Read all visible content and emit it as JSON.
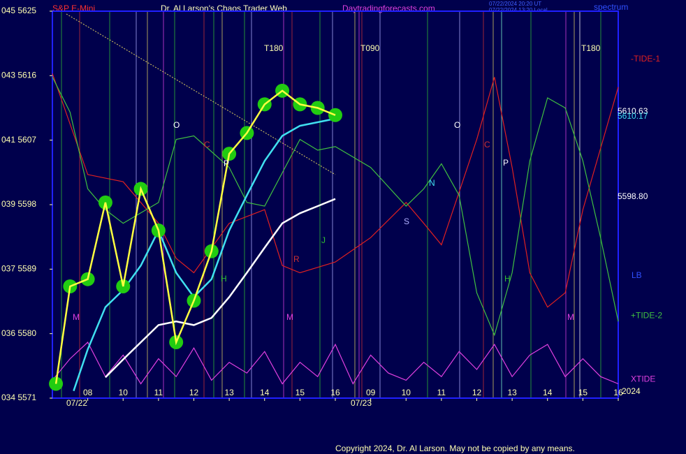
{
  "chart_data": {
    "type": "line",
    "title": "Dr. Al Larson's Chaos Trader Web",
    "subtitle": "S&P E-Mini",
    "site": "Daytradingforecasts.com",
    "tag": "spectrum",
    "timestamps": [
      "07/22/2024 20:20 UT",
      "07/22/2024 13:20 Local"
    ],
    "copyright": "Copyright 2024, Dr. Al Larson. May not be copied by any means.",
    "year": "2024",
    "dates": [
      "07/22",
      "07/23"
    ],
    "ylim": [
      5571,
      5625
    ],
    "yticks": [
      {
        "value": 5625,
        "label": "045  5625"
      },
      {
        "value": 5616,
        "label": "043  5616"
      },
      {
        "value": 5607,
        "label": "041  5607"
      },
      {
        "value": 5598,
        "label": "039  5598"
      },
      {
        "value": 5589,
        "label": "037  5589"
      },
      {
        "value": 5580,
        "label": "036  5580"
      },
      {
        "value": 5571,
        "label": "034  5571"
      }
    ],
    "xlim": [
      0,
      16
    ],
    "xticks": [
      {
        "value": 1,
        "label": "08"
      },
      {
        "value": 2,
        "label": "10"
      },
      {
        "value": 3,
        "label": "11"
      },
      {
        "value": 4,
        "label": "12"
      },
      {
        "value": 5,
        "label": "13"
      },
      {
        "value": 6,
        "label": "14"
      },
      {
        "value": 7,
        "label": "15"
      },
      {
        "value": 8,
        "label": "16"
      },
      {
        "value": 9,
        "label": "09"
      },
      {
        "value": 10,
        "label": "10"
      },
      {
        "value": 11,
        "label": "11"
      },
      {
        "value": 12,
        "label": "12"
      },
      {
        "value": 13,
        "label": "13"
      },
      {
        "value": 14,
        "label": "14"
      },
      {
        "value": 15,
        "label": "15"
      },
      {
        "value": 16,
        "label": "16"
      }
    ],
    "annotations": [
      "T180",
      "T090",
      "T180",
      "5610.63",
      "5610.17",
      "5598.80",
      "LB",
      "O",
      "C",
      "P",
      "N",
      "S",
      "J",
      "R",
      "H",
      "M",
      "O",
      "C",
      "P",
      "H",
      "M",
      "M"
    ],
    "series": [
      {
        "name": "-TIDE-1",
        "color": "#e02020",
        "x": [
          0,
          1,
          2,
          3,
          3.5,
          4,
          5,
          6,
          6.5,
          7,
          8,
          9,
          10,
          10.5,
          11,
          12,
          12.5,
          13,
          13.5,
          14,
          14.5,
          15,
          16
        ],
        "values": [
          5616.3,
          5602.2,
          5601.2,
          5595.4,
          5590.5,
          5588.5,
          5595.4,
          5597.3,
          5589.5,
          5588.5,
          5590,
          5593.4,
          5598.3,
          5595.4,
          5592.4,
          5607.1,
          5615.8,
          5603.2,
          5588.5,
          5583.7,
          5585.7,
          5597.3,
          5614.4
        ]
      },
      {
        "name": "+TIDE-2",
        "color": "#40c040",
        "x": [
          0,
          0.5,
          1,
          1.5,
          2,
          3,
          3.5,
          4,
          5,
          5.5,
          6,
          7,
          7.5,
          8,
          9,
          10,
          10.5,
          11,
          11.5,
          12,
          12.5,
          13,
          13.5,
          14,
          14.5,
          15,
          15.5,
          16
        ],
        "values": [
          5615.8,
          5610.9,
          5600.2,
          5597.3,
          5595.4,
          5598.3,
          5607.1,
          5607.6,
          5603.2,
          5598.3,
          5597.8,
          5607.1,
          5605.6,
          5606.1,
          5603.2,
          5597.8,
          5600.2,
          5603.7,
          5599.3,
          5585.7,
          5579.8,
          5588.5,
          5604.1,
          5612.9,
          5611.5,
          5604.1,
          5593.4,
          5581.7
        ]
      },
      {
        "name": "XTIDE",
        "color": "#e040e0",
        "x": [
          0,
          0.5,
          1,
          1.5,
          2,
          2.5,
          3,
          3.5,
          4,
          4.5,
          5,
          5.5,
          6,
          6.5,
          7,
          7.5,
          8,
          8.5,
          9,
          9.5,
          10,
          10.5,
          11,
          11.5,
          12,
          12.5,
          13,
          13.5,
          14,
          14.5,
          15,
          15.5,
          16
        ],
        "values": [
          5573.5,
          5576.5,
          5578.8,
          5574,
          5577,
          5573,
          5576.5,
          5574,
          5578,
          5573.5,
          5576,
          5574.5,
          5577.5,
          5573,
          5576,
          5574,
          5578.5,
          5573,
          5577,
          5574.5,
          5573.5,
          5576,
          5574,
          5577.5,
          5575,
          5578.5,
          5574,
          5577,
          5578.5,
          5574,
          5576.5,
          5574,
          5573
        ]
      },
      {
        "color": "#ffffff",
        "x": [
          1.5,
          2,
          2.5,
          3,
          3.5,
          4,
          4.5,
          5,
          5.5,
          6,
          6.5,
          7,
          7.5,
          8
        ],
        "values": [
          5573.9,
          5576.4,
          5578.8,
          5581.2,
          5581.7,
          5581.2,
          5582.2,
          5585.1,
          5588.5,
          5592,
          5595.4,
          5596.8,
          5597.8,
          5598.8
        ]
      },
      {
        "color": "#40e0f0",
        "x": [
          0.6,
          1,
          1.5,
          2,
          2.5,
          3,
          3.5,
          4,
          4.5,
          5,
          5.5,
          6,
          6.5,
          7,
          7.5,
          8
        ],
        "values": [
          5572,
          5577.8,
          5583.7,
          5586.1,
          5589.5,
          5594.4,
          5588.5,
          5585.1,
          5587.6,
          5594.4,
          5599.3,
          5604.1,
          5607.6,
          5609,
          5609.5,
          5610
        ]
      },
      {
        "color": "#ffff40",
        "marker": "#22cc11",
        "x": [
          0.1,
          0.5,
          1,
          1.5,
          2,
          2.5,
          3,
          3.5,
          4,
          4.5,
          5,
          5.5,
          6,
          6.5,
          7,
          7.5,
          8
        ],
        "values": [
          5573,
          5586.6,
          5587.6,
          5598.3,
          5586.6,
          5600.2,
          5594.4,
          5578.8,
          5584.6,
          5591.5,
          5605.1,
          5608,
          5612,
          5613.9,
          5612,
          5611.5,
          5610.5
        ]
      }
    ]
  }
}
